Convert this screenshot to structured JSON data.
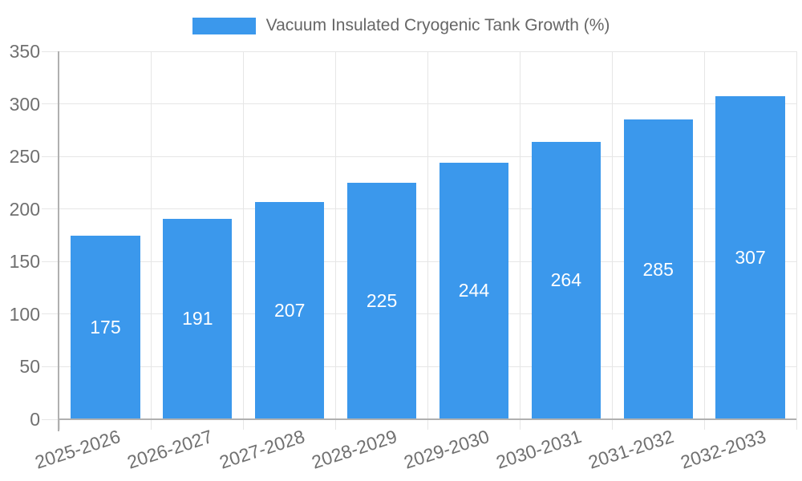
{
  "chart_data": {
    "type": "bar",
    "title": "Vacuum Insulated Cryogenic Tank Growth (%)",
    "categories": [
      "2025-2026",
      "2026-2027",
      "2027-2028",
      "2028-2029",
      "2029-2030",
      "2030-2031",
      "2031-2032",
      "2032-2033"
    ],
    "series": [
      {
        "name": "Vacuum Insulated Cryogenic Tank Growth (%)",
        "values": [
          175,
          191,
          207,
          225,
          244,
          264,
          285,
          307
        ]
      }
    ],
    "value_labels": [
      "175",
      "191",
      "207",
      "225",
      "244",
      "264",
      "285",
      "307"
    ],
    "xlabel": "",
    "ylabel": "",
    "ylim": [
      0,
      350
    ],
    "ytick_step": 50,
    "yticks": [
      0,
      50,
      100,
      150,
      200,
      250,
      300,
      350
    ],
    "grid": true,
    "legend_position": "top",
    "colors": {
      "bar": "#3b98ec",
      "value_label": "#ffffff",
      "axis_line": "#b0b0b0",
      "grid_line": "#e6e6e6",
      "tick_text": "#707070",
      "legend_text": "#666666"
    }
  }
}
